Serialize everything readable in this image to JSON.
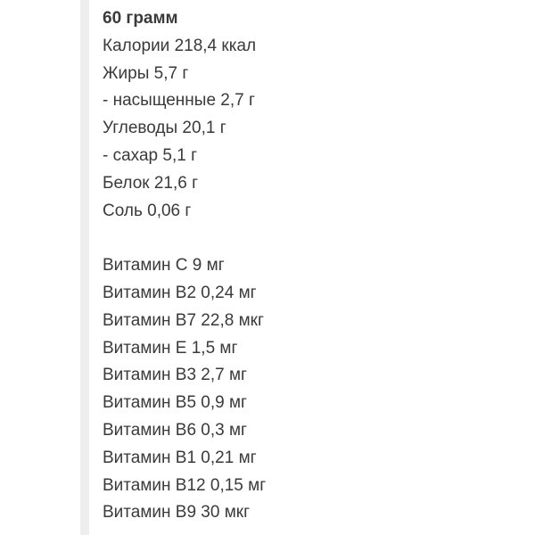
{
  "portion": {
    "title": "60 грамм",
    "nutrients": [
      "Калории 218,4 ккал",
      "Жиры 5,7 г",
      "- насыщенные 2,7 г",
      "Углеводы 20,1 г",
      "- сахар 5,1 г",
      "Белок 21,6 г",
      "Соль 0,06 г"
    ],
    "vitamins": [
      "Витамин C 9 мг",
      "Витамин B2 0,24 мг",
      "Витамин B7 22,8 мкг",
      "Витамин E 1,5 мг",
      "Витамин B3 2,7 мг",
      "Витамин B5 0,9 мг",
      "Витамин B6 0,3 мг",
      "Витамин B1 0,21 мг",
      "Витамин B12 0,15 мг",
      "Витамин B9 30 мкг"
    ]
  }
}
